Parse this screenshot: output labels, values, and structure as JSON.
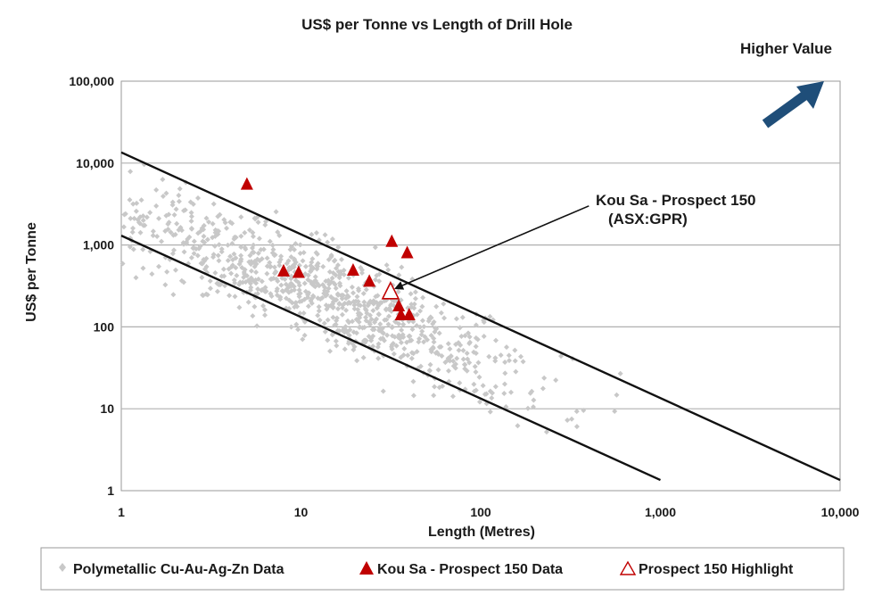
{
  "chart_data": {
    "type": "scatter",
    "title": "US$ per Tonne vs Length of Drill Hole",
    "xlabel": "Length (Metres)",
    "ylabel": "US$ per Tonne",
    "x_scale": "log",
    "y_scale": "log",
    "xlim": [
      1,
      10000
    ],
    "ylim": [
      1,
      100000
    ],
    "x_ticks": [
      1,
      10,
      100,
      1000,
      10000
    ],
    "x_tick_labels": [
      "1",
      "10",
      "100",
      "1,000",
      "10,000"
    ],
    "y_ticks": [
      1,
      10,
      100,
      1000,
      10000,
      100000
    ],
    "y_tick_labels": [
      "1",
      "10",
      "100",
      "1,000",
      "10,000",
      "100,000"
    ],
    "grid": "horizontal",
    "higher_value_label": "Higher Value",
    "colors": {
      "polymetallic": "#c8c8c8",
      "kou_sa": "#c00000",
      "arrow": "#1f4e79",
      "line": "#111111",
      "grid": "#b0b0b0"
    },
    "series": [
      {
        "name": "Polymetallic Cu-Au-Ag-Zn Data",
        "marker": "diamond",
        "cloud": {
          "count": 900,
          "x_range": [
            1,
            700
          ],
          "trend": {
            "at_x": 1,
            "y": 2500,
            "slope": -0.9
          },
          "spread_log10": 0.3,
          "y_min": 5
        }
      },
      {
        "name": "Kou Sa - Prospect 150 Data",
        "marker": "triangle-filled",
        "points": [
          {
            "x": 5,
            "y": 5500
          },
          {
            "x": 8,
            "y": 480
          },
          {
            "x": 9.7,
            "y": 460
          },
          {
            "x": 19.5,
            "y": 490
          },
          {
            "x": 24,
            "y": 360
          },
          {
            "x": 32,
            "y": 1100
          },
          {
            "x": 39,
            "y": 800
          },
          {
            "x": 35,
            "y": 180
          },
          {
            "x": 36,
            "y": 140
          },
          {
            "x": 40,
            "y": 140
          }
        ]
      },
      {
        "name": "Prospect 150 Highlight",
        "marker": "triangle-open",
        "points": [
          {
            "x": 31.5,
            "y": 270
          }
        ]
      }
    ],
    "reference_lines": [
      {
        "name": "upper-bound",
        "from": {
          "x": 1,
          "y": 13500
        },
        "to": {
          "x": 10000,
          "y": 1.35
        }
      },
      {
        "name": "lower-bound",
        "from": {
          "x": 1,
          "y": 1300
        },
        "to": {
          "x": 1000,
          "y": 1.35
        }
      }
    ],
    "annotations": [
      {
        "lines": [
          "Kou Sa - Prospect 150",
          "(ASX:GPR)"
        ],
        "arrow_from": {
          "x": 400,
          "y": 3000
        },
        "arrow_to": {
          "x": 33,
          "y": 290
        }
      }
    ],
    "legend": {
      "position": "bottom",
      "entries": [
        "Polymetallic Cu-Au-Ag-Zn Data",
        "Kou Sa - Prospect 150 Data",
        "Prospect 150 Highlight"
      ]
    }
  }
}
